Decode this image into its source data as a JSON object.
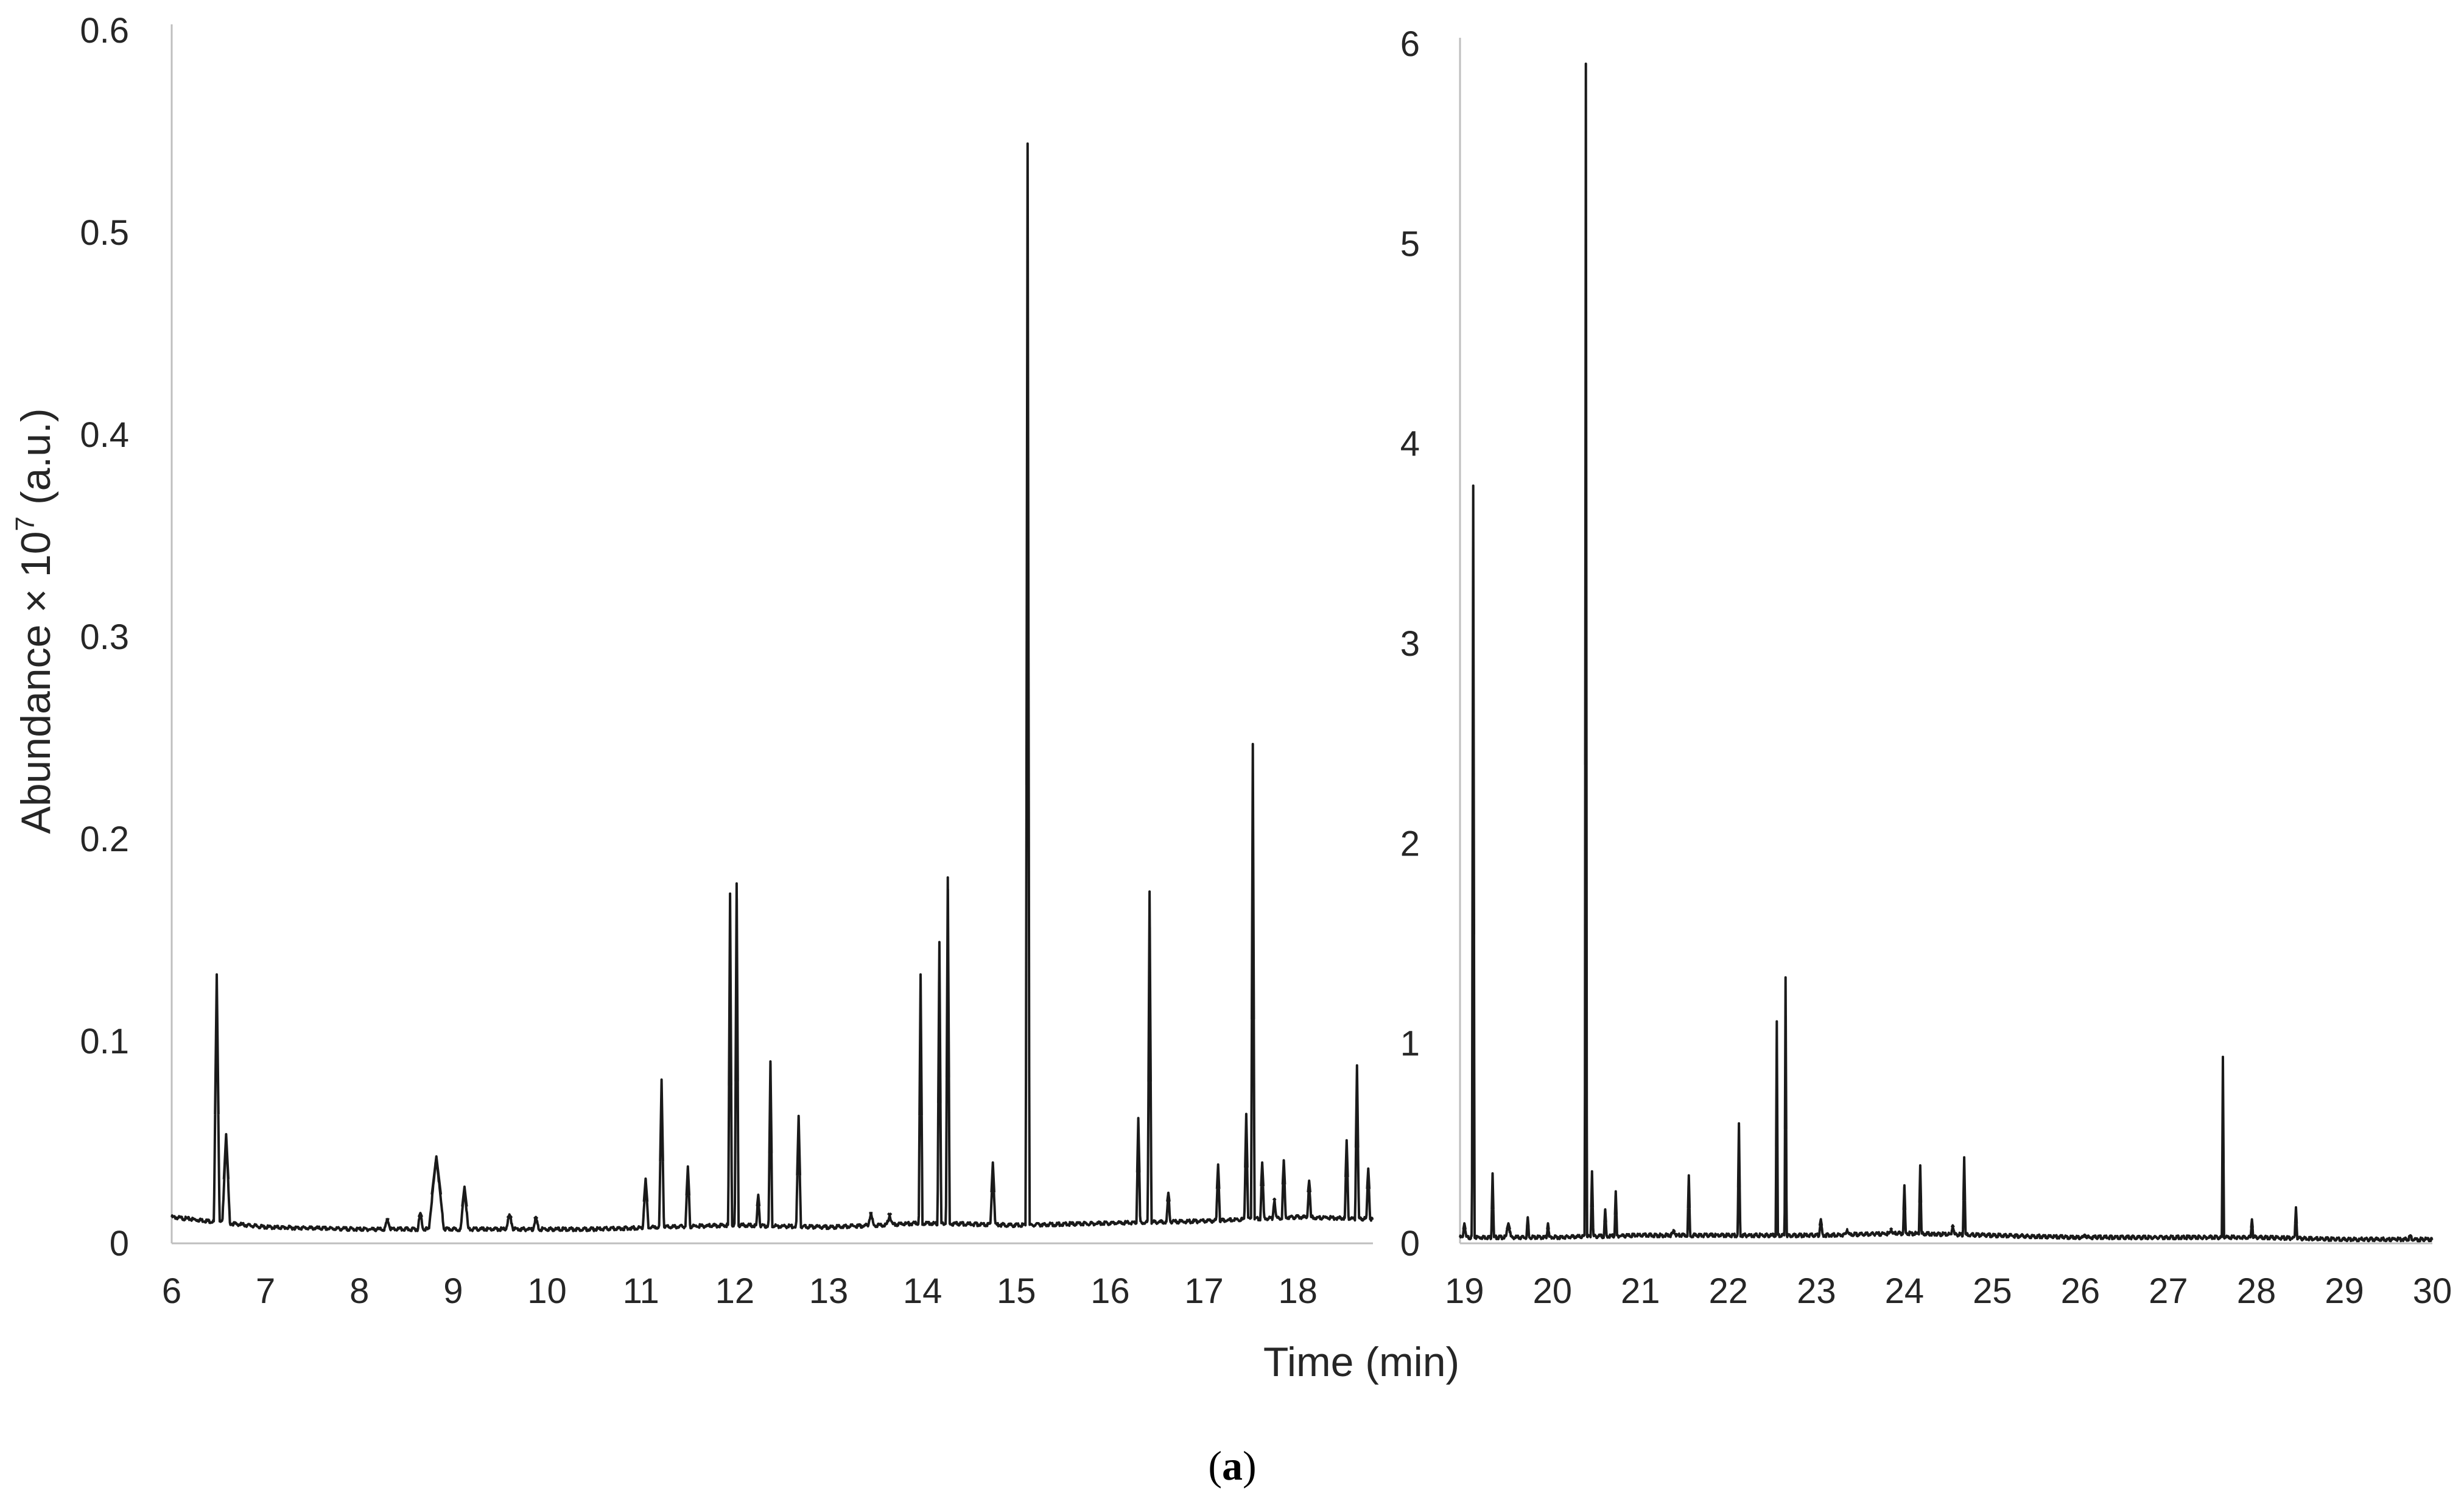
{
  "figure": {
    "caption_open": "(",
    "caption_letter": "a",
    "caption_close": ")",
    "y_axis_title_main": "Abundance × 10",
    "y_axis_title_exp": "7",
    "y_axis_title_unit": " (a.u.)",
    "x_axis_title": "Time (min)"
  },
  "chart_data": [
    {
      "type": "line",
      "title": "",
      "xlabel": "Time (min)",
      "ylabel": "Abundance × 10⁷ (a.u.)",
      "xlim": [
        6,
        18.8
      ],
      "ylim": [
        0,
        0.6
      ],
      "x_ticks": [
        "6",
        "7",
        "8",
        "9",
        "10",
        "11",
        "12",
        "13",
        "14",
        "15",
        "16",
        "17",
        "18"
      ],
      "y_ticks": [
        "0",
        "0.1",
        "0.2",
        "0.3",
        "0.4",
        "0.5",
        "0.6"
      ],
      "grid": false,
      "line_color": "#1a1a1a",
      "baseline": [
        [
          6.0,
          0.013
        ],
        [
          6.4,
          0.011
        ],
        [
          6.6,
          0.01
        ],
        [
          7.0,
          0.008
        ],
        [
          8.0,
          0.007
        ],
        [
          10.5,
          0.007
        ],
        [
          11.2,
          0.008
        ],
        [
          12.0,
          0.009
        ],
        [
          13.0,
          0.008
        ],
        [
          14.0,
          0.01
        ],
        [
          15.0,
          0.009
        ],
        [
          16.0,
          0.01
        ],
        [
          17.0,
          0.011
        ],
        [
          18.0,
          0.013
        ],
        [
          18.8,
          0.012
        ]
      ],
      "peaks": [
        {
          "x": 6.48,
          "y": 0.133,
          "w": 0.03
        },
        {
          "x": 6.58,
          "y": 0.054,
          "w": 0.04
        },
        {
          "x": 8.3,
          "y": 0.012,
          "w": 0.03
        },
        {
          "x": 8.65,
          "y": 0.015,
          "w": 0.03
        },
        {
          "x": 8.82,
          "y": 0.043,
          "w": 0.08
        },
        {
          "x": 9.12,
          "y": 0.028,
          "w": 0.04
        },
        {
          "x": 9.6,
          "y": 0.014,
          "w": 0.04
        },
        {
          "x": 9.88,
          "y": 0.013,
          "w": 0.03
        },
        {
          "x": 11.05,
          "y": 0.032,
          "w": 0.03
        },
        {
          "x": 11.22,
          "y": 0.081,
          "w": 0.025
        },
        {
          "x": 11.5,
          "y": 0.038,
          "w": 0.025
        },
        {
          "x": 11.95,
          "y": 0.173,
          "w": 0.02
        },
        {
          "x": 12.02,
          "y": 0.178,
          "w": 0.02
        },
        {
          "x": 12.25,
          "y": 0.024,
          "w": 0.02
        },
        {
          "x": 12.38,
          "y": 0.09,
          "w": 0.02
        },
        {
          "x": 12.68,
          "y": 0.063,
          "w": 0.025
        },
        {
          "x": 13.45,
          "y": 0.015,
          "w": 0.03
        },
        {
          "x": 13.65,
          "y": 0.014,
          "w": 0.03
        },
        {
          "x": 13.98,
          "y": 0.133,
          "w": 0.02
        },
        {
          "x": 14.18,
          "y": 0.149,
          "w": 0.02
        },
        {
          "x": 14.27,
          "y": 0.181,
          "w": 0.02
        },
        {
          "x": 14.75,
          "y": 0.04,
          "w": 0.025
        },
        {
          "x": 15.12,
          "y": 0.544,
          "w": 0.02
        },
        {
          "x": 16.3,
          "y": 0.062,
          "w": 0.02
        },
        {
          "x": 16.42,
          "y": 0.174,
          "w": 0.02
        },
        {
          "x": 16.62,
          "y": 0.025,
          "w": 0.02
        },
        {
          "x": 17.15,
          "y": 0.039,
          "w": 0.02
        },
        {
          "x": 17.45,
          "y": 0.064,
          "w": 0.02
        },
        {
          "x": 17.52,
          "y": 0.247,
          "w": 0.018
        },
        {
          "x": 17.62,
          "y": 0.04,
          "w": 0.02
        },
        {
          "x": 17.75,
          "y": 0.022,
          "w": 0.02
        },
        {
          "x": 17.85,
          "y": 0.041,
          "w": 0.02
        },
        {
          "x": 18.12,
          "y": 0.031,
          "w": 0.02
        },
        {
          "x": 18.52,
          "y": 0.051,
          "w": 0.02
        },
        {
          "x": 18.63,
          "y": 0.088,
          "w": 0.02
        },
        {
          "x": 18.75,
          "y": 0.037,
          "w": 0.02
        }
      ]
    },
    {
      "type": "line",
      "title": "",
      "xlabel": "Time (min)",
      "ylabel": "",
      "xlim": [
        18.95,
        30
      ],
      "ylim": [
        0,
        6
      ],
      "x_ticks": [
        "19",
        "20",
        "21",
        "22",
        "23",
        "24",
        "25",
        "26",
        "27",
        "28",
        "29",
        "30"
      ],
      "y_ticks": [
        "0",
        "1",
        "2",
        "3",
        "4",
        "5",
        "6"
      ],
      "grid": false,
      "line_color": "#1a1a1a",
      "baseline": [
        [
          18.95,
          0.03
        ],
        [
          20.0,
          0.03
        ],
        [
          21.0,
          0.04
        ],
        [
          22.0,
          0.04
        ],
        [
          23.0,
          0.04
        ],
        [
          24.0,
          0.05
        ],
        [
          25.0,
          0.04
        ],
        [
          26.0,
          0.03
        ],
        [
          27.0,
          0.03
        ],
        [
          28.0,
          0.03
        ],
        [
          29.0,
          0.02
        ],
        [
          30.0,
          0.02
        ]
      ],
      "peaks": [
        {
          "x": 19.0,
          "y": 0.1,
          "w": 0.02
        },
        {
          "x": 19.1,
          "y": 3.79,
          "w": 0.015
        },
        {
          "x": 19.32,
          "y": 0.35,
          "w": 0.015
        },
        {
          "x": 19.5,
          "y": 0.1,
          "w": 0.03
        },
        {
          "x": 19.72,
          "y": 0.13,
          "w": 0.015
        },
        {
          "x": 19.95,
          "y": 0.1,
          "w": 0.015
        },
        {
          "x": 20.38,
          "y": 5.9,
          "w": 0.012
        },
        {
          "x": 20.45,
          "y": 0.36,
          "w": 0.015
        },
        {
          "x": 20.6,
          "y": 0.17,
          "w": 0.015
        },
        {
          "x": 20.72,
          "y": 0.26,
          "w": 0.015
        },
        {
          "x": 21.38,
          "y": 0.06,
          "w": 0.03
        },
        {
          "x": 21.55,
          "y": 0.34,
          "w": 0.015
        },
        {
          "x": 22.12,
          "y": 0.6,
          "w": 0.015
        },
        {
          "x": 22.55,
          "y": 1.11,
          "w": 0.012
        },
        {
          "x": 22.65,
          "y": 1.33,
          "w": 0.012
        },
        {
          "x": 23.05,
          "y": 0.12,
          "w": 0.02
        },
        {
          "x": 23.35,
          "y": 0.07,
          "w": 0.02
        },
        {
          "x": 23.85,
          "y": 0.07,
          "w": 0.02
        },
        {
          "x": 24.0,
          "y": 0.29,
          "w": 0.015
        },
        {
          "x": 24.18,
          "y": 0.39,
          "w": 0.015
        },
        {
          "x": 24.55,
          "y": 0.09,
          "w": 0.02
        },
        {
          "x": 24.68,
          "y": 0.43,
          "w": 0.015
        },
        {
          "x": 26.05,
          "y": 0.04,
          "w": 0.02
        },
        {
          "x": 27.62,
          "y": 0.93,
          "w": 0.012
        },
        {
          "x": 27.95,
          "y": 0.12,
          "w": 0.015
        },
        {
          "x": 28.45,
          "y": 0.18,
          "w": 0.015
        },
        {
          "x": 29.75,
          "y": 0.04,
          "w": 0.02
        }
      ]
    }
  ]
}
